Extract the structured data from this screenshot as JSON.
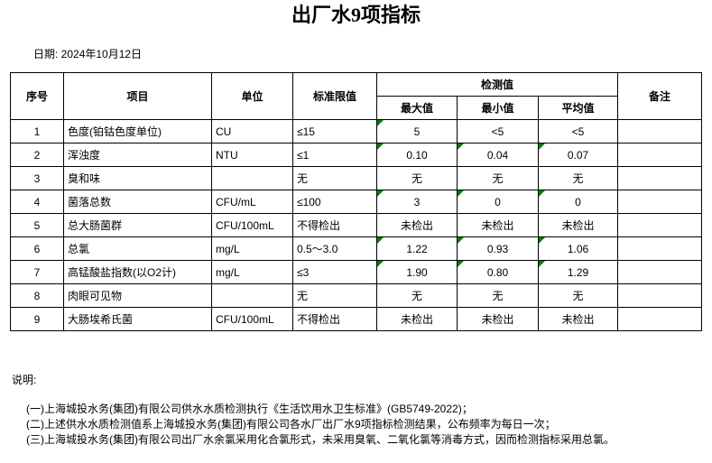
{
  "title": "出厂水9项指标",
  "date_label": "日期: 2024年10月12日",
  "table": {
    "headers": {
      "no": "序号",
      "item": "项目",
      "unit": "单位",
      "limit": "标准限值",
      "detection": "检测值",
      "max": "最大值",
      "min": "最小值",
      "avg": "平均值",
      "remark": "备注"
    },
    "marker_color": "#008000",
    "rows": [
      {
        "no": "1",
        "item": "色度(铂钴色度单位)",
        "unit": "CU",
        "limit": "≤15",
        "max": "5",
        "min": "<5",
        "avg": "<5",
        "remark": "",
        "marks": [
          "max"
        ]
      },
      {
        "no": "2",
        "item": "浑浊度",
        "unit": "NTU",
        "limit": "≤1",
        "max": "0.10",
        "min": "0.04",
        "avg": "0.07",
        "remark": "",
        "marks": [
          "max",
          "min",
          "avg"
        ]
      },
      {
        "no": "3",
        "item": "臭和味",
        "unit": "",
        "limit": "无",
        "max": "无",
        "min": "无",
        "avg": "无",
        "remark": "",
        "marks": []
      },
      {
        "no": "4",
        "item": "菌落总数",
        "unit": "CFU/mL",
        "limit": "≤100",
        "max": "3",
        "min": "0",
        "avg": "0",
        "remark": "",
        "marks": [
          "max",
          "min",
          "avg"
        ]
      },
      {
        "no": "5",
        "item": "总大肠菌群",
        "unit": "CFU/100mL",
        "limit": "不得检出",
        "max": "未检出",
        "min": "未检出",
        "avg": "未检出",
        "remark": "",
        "marks": []
      },
      {
        "no": "6",
        "item": "总氯",
        "unit": "mg/L",
        "limit": "0.5～3.0",
        "max": "1.22",
        "min": "0.93",
        "avg": "1.06",
        "remark": "",
        "marks": [
          "max",
          "min",
          "avg"
        ]
      },
      {
        "no": "7",
        "item": "高锰酸盐指数(以O2计)",
        "unit": "mg/L",
        "limit": "≤3",
        "max": "1.90",
        "min": "0.80",
        "avg": "1.29",
        "remark": "",
        "marks": [
          "max",
          "min",
          "avg"
        ]
      },
      {
        "no": "8",
        "item": "肉眼可见物",
        "unit": "",
        "limit": "无",
        "max": "无",
        "min": "无",
        "avg": "无",
        "remark": "",
        "marks": []
      },
      {
        "no": "9",
        "item": "大肠埃希氏菌",
        "unit": "CFU/100mL",
        "limit": "不得检出",
        "max": "未检出",
        "min": "未检出",
        "avg": "未检出",
        "remark": "",
        "marks": []
      }
    ]
  },
  "notes": {
    "label": "说明:",
    "items": [
      "(一)上海城投水务(集团)有限公司供水水质检测执行《生活饮用水卫生标准》(GB5749-2022)；",
      "(二)上述供水水质检测值系上海城投水务(集团)有限公司各水厂出厂水9项指标检测结果，公布频率为每日一次；",
      "(三)上海城投水务(集团)有限公司出厂水余氯采用化合氯形式，未采用臭氧、二氧化氯等消毒方式，因而检测指标采用总氯。"
    ]
  }
}
